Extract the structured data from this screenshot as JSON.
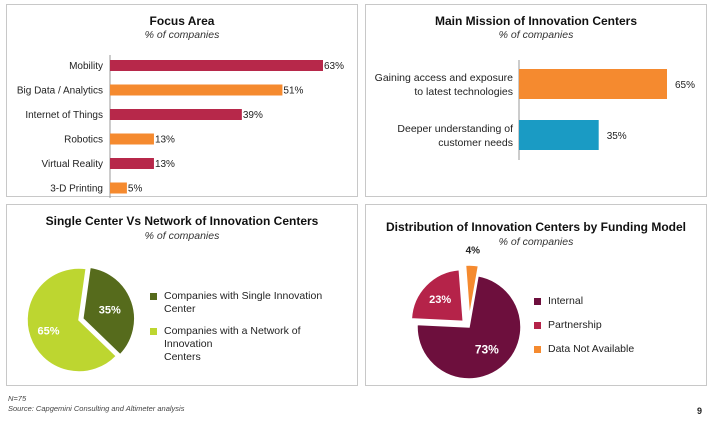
{
  "colors": {
    "red": "#b7284a",
    "orange": "#f58a2f",
    "blue": "#1a9bc4",
    "dark_olive": "#566b1c",
    "light_green": "#bdd630",
    "maroon": "#6d0f3d",
    "crimson": "#b52349"
  },
  "chart_data": [
    {
      "type": "bar",
      "title": "Focus Area",
      "subtitle": "% of companies",
      "categories": [
        "Mobility",
        "Big Data / Analytics",
        "Internet of Things",
        "Robotics",
        "Virtual Reality",
        "3-D Printing"
      ],
      "values": [
        63,
        51,
        39,
        13,
        13,
        5
      ],
      "value_labels": [
        "63%",
        "51%",
        "39%",
        "13%",
        "13%",
        "5%"
      ],
      "bar_colors": [
        "#b7284a",
        "#f58a2f",
        "#b7284a",
        "#f58a2f",
        "#b7284a",
        "#f58a2f"
      ],
      "orientation": "horizontal",
      "xlim": [
        0,
        63
      ]
    },
    {
      "type": "bar",
      "title": "Main Mission of Innovation Centers",
      "subtitle": "% of companies",
      "categories": [
        [
          "Gaining access and exposure",
          "to latest technologies"
        ],
        [
          "Deeper understanding of",
          "customer needs"
        ]
      ],
      "values": [
        65,
        35
      ],
      "value_labels": [
        "65%",
        "35%"
      ],
      "bar_colors": [
        "#f58a2f",
        "#1a9bc4"
      ],
      "orientation": "horizontal",
      "xlim": [
        0,
        65
      ]
    },
    {
      "type": "pie",
      "title": "Single Center Vs Network of Innovation Centers",
      "subtitle": "% of companies",
      "slices": [
        {
          "label": "Companies with Single Innovation Center",
          "value": 35,
          "value_label": "35%",
          "color": "#566b1c"
        },
        {
          "label": "Companies with a Network of Innovation Centers",
          "value": 65,
          "value_label": "65%",
          "color": "#bdd630"
        }
      ],
      "legend_lines": [
        [
          "Companies with Single Innovation Center"
        ],
        [
          "Companies with a Network of Innovation",
          "Centers"
        ]
      ]
    },
    {
      "type": "pie",
      "title": "Distribution of Innovation Centers by Funding Model",
      "subtitle": "% of companies",
      "slices": [
        {
          "label": "Internal",
          "value": 73,
          "value_label": "73%",
          "color": "#6d0f3d"
        },
        {
          "label": "Partnership",
          "value": 23,
          "value_label": "23%",
          "color": "#b52349"
        },
        {
          "label": "Data Not Available",
          "value": 4,
          "value_label": "4%",
          "color": "#f58a2f"
        }
      ]
    }
  ],
  "footer": {
    "n": "N=75",
    "source": "Source: Capgemini Consulting and Altimeter analysis",
    "page": "9"
  }
}
